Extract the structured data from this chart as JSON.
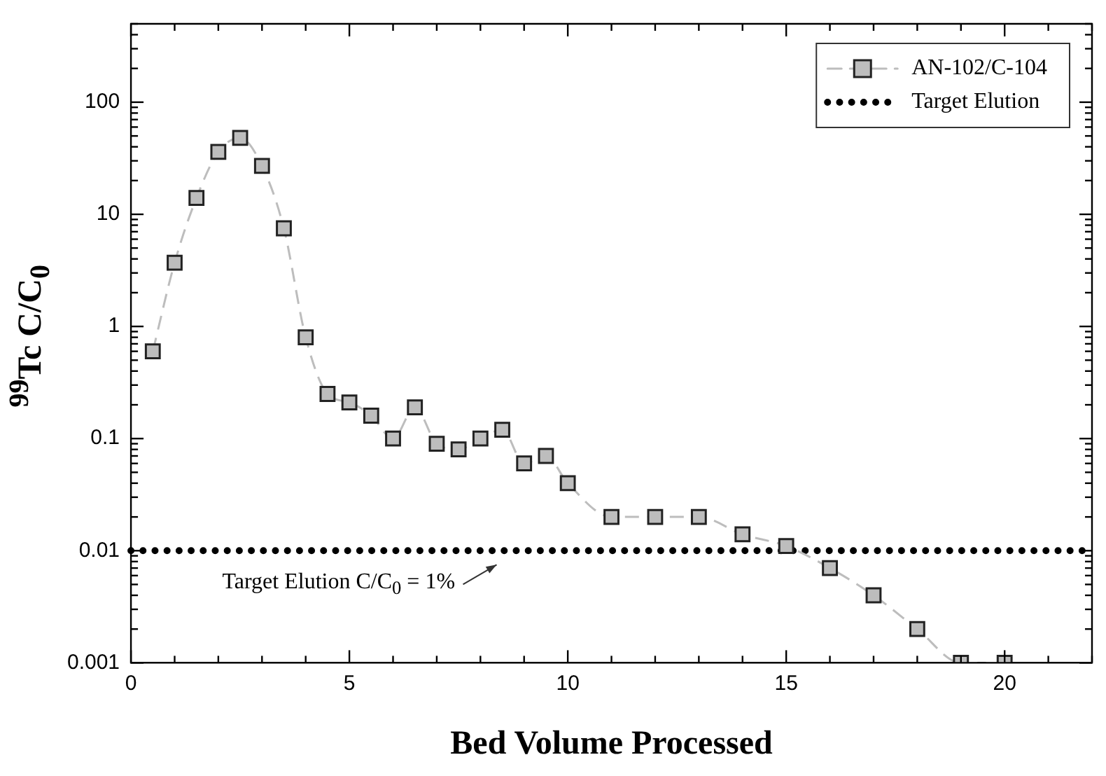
{
  "chart_data": {
    "type": "line",
    "xlabel": "Bed Volume Processed",
    "ylabel": "$^{99}$Tc C/C$_{0}$",
    "x": [
      0.5,
      1,
      1.5,
      2,
      2.5,
      3,
      3.5,
      4,
      4.5,
      5,
      5.5,
      6,
      6.5,
      7,
      7.5,
      8,
      8.5,
      9,
      9.5,
      10,
      11,
      12,
      13,
      14,
      15,
      16,
      17,
      18,
      19,
      20
    ],
    "series": [
      {
        "name": "AN-102/C-104",
        "color": "#bdbdbd",
        "values": [
          0.6,
          3.7,
          14,
          36,
          48,
          27,
          7.5,
          0.8,
          0.25,
          0.21,
          0.16,
          0.1,
          0.19,
          0.09,
          0.08,
          0.1,
          0.12,
          0.06,
          0.07,
          0.04,
          0.02,
          0.02,
          0.02,
          0.014,
          0.011,
          0.007,
          0.004,
          0.002,
          0.001,
          0.001
        ]
      }
    ],
    "ref_lines": [
      {
        "axis": "y",
        "value": 0.01,
        "label": "Target Elution",
        "color": "#000000",
        "line_style": "dotted"
      }
    ],
    "annotations": [
      {
        "text": "Target Elution C/C$_{0}$ = 1%",
        "x": 8.5,
        "y": 0.01
      }
    ],
    "xlim": [
      0,
      22
    ],
    "xticks": [
      0,
      5,
      10,
      15,
      20
    ],
    "ylim": [
      0.001,
      500
    ],
    "yticks": [
      0.001,
      0.01,
      0.1,
      1,
      10,
      100
    ],
    "log": "y",
    "grid": false,
    "legend": "top right",
    "marker": "square",
    "line_style": "dashed"
  }
}
